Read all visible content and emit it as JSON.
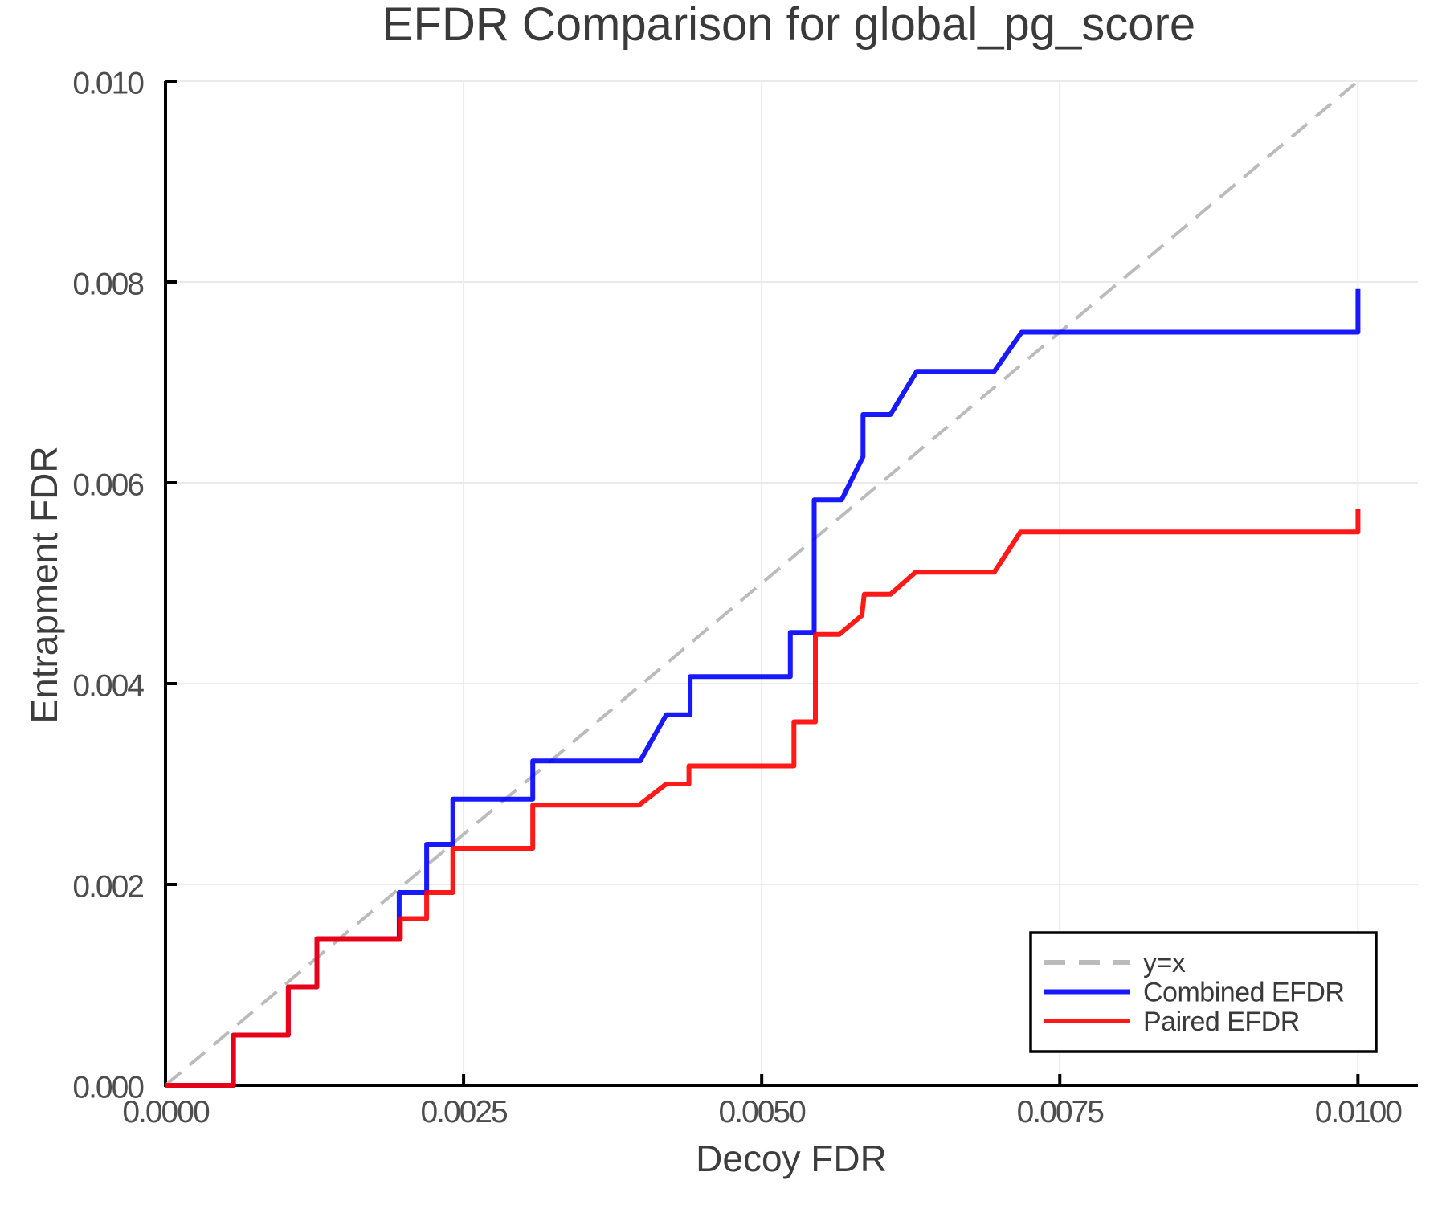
{
  "chart_data": {
    "type": "line",
    "title": "EFDR Comparison for global_pg_score",
    "xlabel": "Decoy FDR",
    "ylabel": "Entrapment FDR",
    "xlim": [
      0,
      0.0105
    ],
    "ylim": [
      0,
      0.01
    ],
    "grid": true,
    "background": "#ffffff",
    "x_ticks": {
      "values": [
        0.0,
        0.0025,
        0.005,
        0.0075,
        0.01
      ],
      "labels": [
        "0.0000",
        "0.0025",
        "0.0050",
        "0.0075",
        "0.0100"
      ]
    },
    "y_ticks": {
      "values": [
        0.0,
        0.002,
        0.004,
        0.006,
        0.008,
        0.01
      ],
      "labels": [
        "0.000",
        "0.002",
        "0.004",
        "0.006",
        "0.008",
        "0.010"
      ]
    },
    "identity_line": {
      "label": "y=x",
      "style": "dashed",
      "color": "#bbbbbb",
      "from": [
        0,
        0
      ],
      "to": [
        0.01,
        0.01
      ]
    },
    "series": [
      {
        "name": "Combined EFDR",
        "color": "#0000ff",
        "points": [
          [
            0,
            0
          ],
          [
            0.00057,
            0
          ],
          [
            0.00057,
            0.0005
          ],
          [
            0.00103,
            0.0005
          ],
          [
            0.00103,
            0.00098
          ],
          [
            0.00127,
            0.00098
          ],
          [
            0.00127,
            0.00146
          ],
          [
            0.00196,
            0.00146
          ],
          [
            0.00196,
            0.00192
          ],
          [
            0.00219,
            0.00192
          ],
          [
            0.00219,
            0.0024
          ],
          [
            0.00241,
            0.0024
          ],
          [
            0.00241,
            0.00285
          ],
          [
            0.00308,
            0.00285
          ],
          [
            0.00308,
            0.00323
          ],
          [
            0.00398,
            0.00323
          ],
          [
            0.0042,
            0.00369
          ],
          [
            0.0044,
            0.00369
          ],
          [
            0.0044,
            0.00407
          ],
          [
            0.00524,
            0.00407
          ],
          [
            0.00524,
            0.00451
          ],
          [
            0.00544,
            0.00451
          ],
          [
            0.00544,
            0.00583
          ],
          [
            0.00567,
            0.00583
          ],
          [
            0.00585,
            0.00626
          ],
          [
            0.00585,
            0.00668
          ],
          [
            0.00608,
            0.00668
          ],
          [
            0.0063,
            0.00711
          ],
          [
            0.00695,
            0.00711
          ],
          [
            0.00718,
            0.0075
          ],
          [
            0.01,
            0.0075
          ],
          [
            0.01,
            0.00793
          ]
        ]
      },
      {
        "name": "Paired EFDR",
        "color": "#ff0000",
        "points": [
          [
            0,
            0
          ],
          [
            0.00057,
            0
          ],
          [
            0.00057,
            0.0005
          ],
          [
            0.00103,
            0.0005
          ],
          [
            0.00103,
            0.00098
          ],
          [
            0.00127,
            0.00098
          ],
          [
            0.00127,
            0.00146
          ],
          [
            0.00197,
            0.00146
          ],
          [
            0.00197,
            0.00166
          ],
          [
            0.00219,
            0.00166
          ],
          [
            0.00219,
            0.00192
          ],
          [
            0.00241,
            0.00192
          ],
          [
            0.00241,
            0.00236
          ],
          [
            0.00308,
            0.00236
          ],
          [
            0.00308,
            0.00279
          ],
          [
            0.00397,
            0.00279
          ],
          [
            0.0042,
            0.003
          ],
          [
            0.00439,
            0.003
          ],
          [
            0.00439,
            0.00318
          ],
          [
            0.00527,
            0.00318
          ],
          [
            0.00527,
            0.00362
          ],
          [
            0.00545,
            0.00362
          ],
          [
            0.00545,
            0.00449
          ],
          [
            0.00565,
            0.00449
          ],
          [
            0.00584,
            0.00468
          ],
          [
            0.00586,
            0.00489
          ],
          [
            0.00608,
            0.00489
          ],
          [
            0.00629,
            0.00511
          ],
          [
            0.00695,
            0.00511
          ],
          [
            0.00717,
            0.00551
          ],
          [
            0.01,
            0.00551
          ],
          [
            0.01,
            0.00574
          ]
        ]
      }
    ],
    "legend": {
      "position": "lower right",
      "entries": [
        {
          "label": "y=x",
          "color": "#bbbbbb",
          "dash": true
        },
        {
          "label": "Combined EFDR",
          "color": "#0000ff",
          "dash": false
        },
        {
          "label": "Paired EFDR",
          "color": "#ff0000",
          "dash": false
        }
      ]
    }
  }
}
